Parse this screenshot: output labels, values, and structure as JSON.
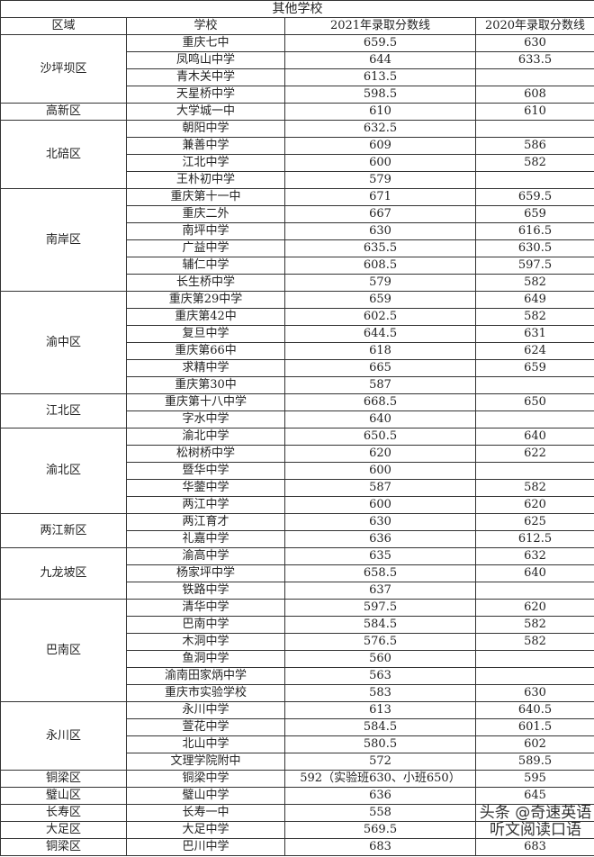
{
  "title": "其他学校",
  "headers": [
    "区域",
    "学校",
    "2021年录取分数线",
    "2020年录取分数线"
  ],
  "groups": [
    {
      "district": "沙坪坝区",
      "rows": [
        [
          "重庆七中",
          "659.5",
          "630"
        ],
        [
          "凤鸣山中学",
          "644",
          "633.5"
        ],
        [
          "青木关中学",
          "613.5",
          ""
        ],
        [
          "天星桥中学",
          "598.5",
          "608"
        ]
      ]
    },
    {
      "district": "高新区",
      "rows": [
        [
          "大学城一中",
          "610",
          "610"
        ]
      ]
    },
    {
      "district": "北碚区",
      "rows": [
        [
          "朝阳中学",
          "632.5",
          ""
        ],
        [
          "兼善中学",
          "609",
          "586"
        ],
        [
          "江北中学",
          "600",
          "582"
        ],
        [
          "王朴初中学",
          "579",
          ""
        ]
      ]
    },
    {
      "district": "南岸区",
      "rows": [
        [
          "重庆第十一中",
          "671",
          "659.5"
        ],
        [
          "重庆二外",
          "667",
          "659"
        ],
        [
          "南坪中学",
          "630",
          "616.5"
        ],
        [
          "广益中学",
          "635.5",
          "630.5"
        ],
        [
          "辅仁中学",
          "608.5",
          "597.5"
        ],
        [
          "长生桥中学",
          "579",
          "582"
        ]
      ]
    },
    {
      "district": "渝中区",
      "rows": [
        [
          "重庆第29中学",
          "659",
          "649"
        ],
        [
          "重庆第42中",
          "602.5",
          "582"
        ],
        [
          "复旦中学",
          "644.5",
          "631"
        ],
        [
          "重庆第66中",
          "618",
          "624"
        ],
        [
          "求精中学",
          "665",
          "659"
        ],
        [
          "重庆第30中",
          "587",
          ""
        ]
      ]
    },
    {
      "district": "江北区",
      "rows": [
        [
          "重庆第十八中学",
          "668.5",
          "650"
        ],
        [
          "字水中学",
          "640",
          ""
        ]
      ]
    },
    {
      "district": "渝北区",
      "rows": [
        [
          "渝北中学",
          "650.5",
          "640"
        ],
        [
          "松树桥中学",
          "620",
          "622"
        ],
        [
          "暨华中学",
          "600",
          ""
        ],
        [
          "华蓥中学",
          "587",
          "582"
        ],
        [
          "两江中学",
          "600",
          "620"
        ]
      ]
    },
    {
      "district": "两江新区",
      "rows": [
        [
          "两江育才",
          "630",
          "625"
        ],
        [
          "礼嘉中学",
          "636",
          "612.5"
        ]
      ]
    },
    {
      "district": "九龙坡区",
      "rows": [
        [
          "渝高中学",
          "635",
          "632"
        ],
        [
          "杨家坪中学",
          "658.5",
          "640"
        ],
        [
          "铁路中学",
          "637",
          ""
        ]
      ]
    },
    {
      "district": "巴南区",
      "rows": [
        [
          "清华中学",
          "597.5",
          "620"
        ],
        [
          "巴南中学",
          "584.5",
          "582"
        ],
        [
          "木洞中学",
          "576.5",
          "582"
        ],
        [
          "鱼洞中学",
          "560",
          ""
        ],
        [
          "渝南田家炳中学",
          "563",
          ""
        ],
        [
          "重庆市实验学校",
          "583",
          "630"
        ]
      ]
    },
    {
      "district": "永川区",
      "rows": [
        [
          "永川中学",
          "613",
          "640.5"
        ],
        [
          "萱花中学",
          "584.5",
          "601.5"
        ],
        [
          "北山中学",
          "580.5",
          "602"
        ],
        [
          "文理学院附中",
          "572",
          "589.5"
        ]
      ]
    },
    {
      "district": "铜梁区",
      "rows": [
        [
          "铜梁中学",
          "592（实验班630、小班650）",
          "595"
        ]
      ]
    },
    {
      "district": "璧山区",
      "rows": [
        [
          "璧山中学",
          "636",
          "645"
        ]
      ]
    },
    {
      "district": "长寿区",
      "rows": [
        [
          "长寿一中",
          "558",
          ""
        ]
      ]
    },
    {
      "district": "大足区",
      "rows": [
        [
          "大足中学",
          "569.5",
          ""
        ]
      ]
    },
    {
      "district": "铜梁区",
      "rows": [
        [
          "巴川中学",
          "683",
          "683"
        ]
      ]
    }
  ],
  "watermark": "头条 @奇速英语听文阅读口语"
}
